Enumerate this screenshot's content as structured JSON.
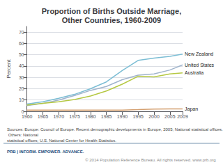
{
  "chart_data": {
    "type": "line",
    "title": "Proportion of Births Outside Marriage,\nOther Countries, 1960-2009",
    "ylabel": "Percent",
    "x": [
      1960,
      1965,
      1970,
      1975,
      1980,
      1985,
      1990,
      1995,
      2000,
      2005,
      2009
    ],
    "xlim": [
      1960,
      2009
    ],
    "xticks": [
      1960,
      1965,
      1970,
      1975,
      1980,
      1985,
      1990,
      1995,
      2000,
      2005,
      2009
    ],
    "ylim": [
      0,
      75
    ],
    "yticks": [
      0,
      10,
      20,
      30,
      40,
      50,
      60,
      70
    ],
    "grid": true,
    "series": [
      {
        "name": "New Zealand",
        "color": "#7bbdd4",
        "values": [
          6.5,
          8.5,
          11.5,
          15.0,
          20.0,
          26.0,
          36.0,
          45.0,
          47.0,
          48.5,
          50.5
        ]
      },
      {
        "name": "United States",
        "color": "#a0b4cc",
        "values": [
          5.0,
          7.0,
          10.0,
          14.0,
          18.5,
          22.0,
          28.0,
          32.0,
          33.0,
          36.5,
          41.0
        ]
      },
      {
        "name": "Australia",
        "color": "#b5c842",
        "values": [
          5.5,
          7.0,
          8.5,
          10.5,
          13.5,
          18.0,
          24.0,
          31.0,
          30.5,
          33.0,
          34.0
        ]
      },
      {
        "name": "Japan",
        "color": "#d4a070",
        "values": [
          1.0,
          1.0,
          1.0,
          1.0,
          1.0,
          1.0,
          1.1,
          1.5,
          2.0,
          2.1,
          2.2
        ]
      }
    ],
    "annotations": [
      "Sources: Europe: Council of Europe. Recent demographic developments in Europe, 2005; National statistical offices. Others: National\nstatistical offices; U.S. National Center for Health Statistics.",
      "PRB | INFORM. EMPOWER. ADVANCE.",
      "© 2014 Population Reference Bureau. All rights reserved. www.prb.org"
    ]
  }
}
